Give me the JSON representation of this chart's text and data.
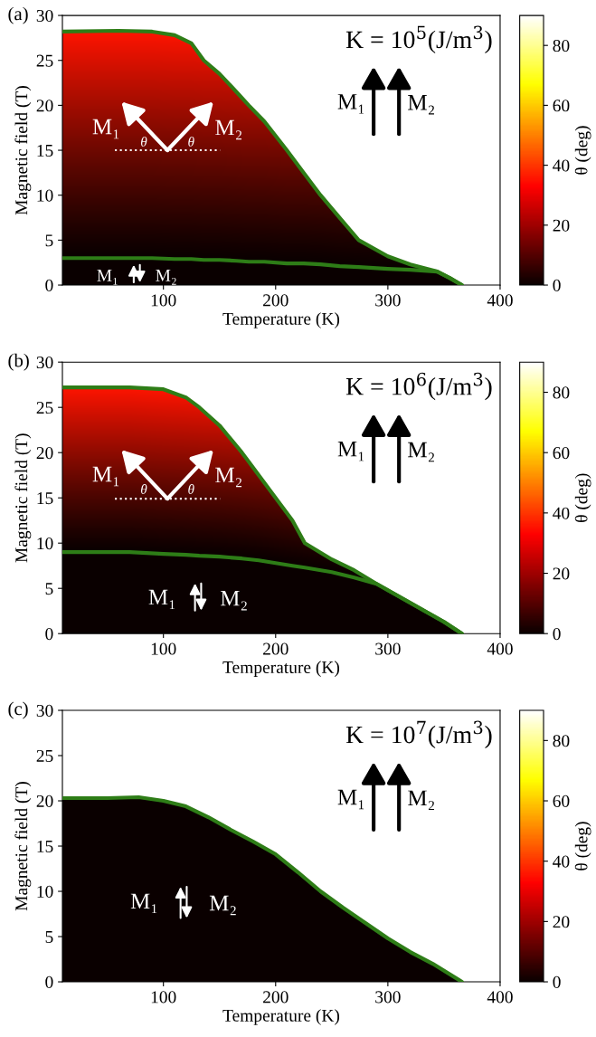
{
  "chart_data": [
    {
      "type": "line",
      "title": "(a)",
      "xlabel": "Temperature (K)",
      "ylabel": "Magnetic field (T)",
      "clabel": "θ (deg)",
      "xlim": [
        10,
        400
      ],
      "xticks": [
        100,
        200,
        300,
        400
      ],
      "ylim": [
        0,
        30
      ],
      "yticks": [
        0,
        5,
        10,
        15,
        20,
        25,
        30
      ],
      "clim": [
        0,
        90
      ],
      "cticks": [
        0,
        20,
        40,
        60,
        80
      ],
      "grid": false,
      "legend": false,
      "marker": "none",
      "line_style": "solid",
      "x": [
        10,
        60,
        90,
        110,
        125,
        136,
        150,
        165,
        176,
        190,
        210,
        225,
        240,
        257,
        274,
        300,
        320,
        344,
        355,
        366
      ],
      "series": [
        {
          "color": "#2e7d17",
          "values": [
            28.2,
            28.3,
            28.2,
            27.8,
            26.9,
            25,
            23.5,
            21.5,
            20,
            18.2,
            15,
            12.5,
            10,
            7.5,
            5,
            3.2,
            2.3,
            1.5,
            0.8,
            0
          ]
        },
        {
          "color": "#2e7d17",
          "values": [
            3.0,
            3.0,
            3.0,
            2.9,
            2.9,
            2.8,
            2.8,
            2.7,
            2.6,
            2.6,
            2.4,
            2.4,
            2.3,
            2.1,
            2.0,
            1.8,
            1.7,
            1.5,
            0.8,
            0
          ]
        }
      ],
      "annotations": [
        "K = 10$^{5}$(J/m$^{3}$)",
        "M₁",
        "M₂",
        "M₁",
        "M₂",
        "θ",
        "θ",
        "M₁",
        "M₂"
      ]
    },
    {
      "type": "line",
      "title": "(b)",
      "xlabel": "Temperature (K)",
      "ylabel": "Magnetic field (T)",
      "clabel": "θ (deg)",
      "xlim": [
        10,
        400
      ],
      "xticks": [
        100,
        200,
        300,
        400
      ],
      "ylim": [
        0,
        30
      ],
      "yticks": [
        0,
        5,
        10,
        15,
        20,
        25,
        30
      ],
      "clim": [
        0,
        90
      ],
      "cticks": [
        0,
        20,
        40,
        60,
        80
      ],
      "grid": false,
      "legend": false,
      "marker": "none",
      "line_style": "solid",
      "x": [
        10,
        70,
        100,
        120,
        132,
        150,
        170,
        185,
        200,
        215,
        226,
        250,
        270,
        290,
        310,
        330,
        350,
        366
      ],
      "series": [
        {
          "color": "#2e7d17",
          "values": [
            27.2,
            27.2,
            27.0,
            26.1,
            25,
            23,
            20,
            17.5,
            15,
            12.5,
            10,
            8.2,
            7,
            5.5,
            4.1,
            2.7,
            1.3,
            0
          ]
        },
        {
          "color": "#2e7d17",
          "values": [
            9.0,
            9.0,
            8.8,
            8.7,
            8.6,
            8.5,
            8.3,
            8.1,
            7.8,
            7.5,
            7.3,
            6.8,
            6.2,
            5.5,
            4.1,
            2.7,
            1.3,
            0
          ]
        }
      ],
      "annotations": [
        "K = 10$^{6}$(J/m$^{3}$)",
        "M₁",
        "M₂",
        "M₁",
        "M₂",
        "θ",
        "θ",
        "M₁",
        "M₂"
      ]
    },
    {
      "type": "line",
      "title": "(c)",
      "xlabel": "Temperature (K)",
      "ylabel": "Magnetic field (T)",
      "clabel": "θ (deg)",
      "xlim": [
        10,
        400
      ],
      "xticks": [
        100,
        200,
        300,
        400
      ],
      "ylim": [
        0,
        30
      ],
      "yticks": [
        0,
        5,
        10,
        15,
        20,
        25,
        30
      ],
      "clim": [
        0,
        90
      ],
      "cticks": [
        0,
        20,
        40,
        60,
        80
      ],
      "grid": false,
      "legend": false,
      "marker": "none",
      "line_style": "solid",
      "x": [
        10,
        50,
        78,
        100,
        120,
        140,
        160,
        180,
        200,
        220,
        240,
        260,
        280,
        300,
        320,
        340,
        366
      ],
      "series": [
        {
          "color": "#2e7d17",
          "values": [
            20.3,
            20.3,
            20.4,
            20.0,
            19.4,
            18.2,
            16.8,
            15.5,
            14.1,
            12.1,
            10,
            8.2,
            6.5,
            4.8,
            3.3,
            2.0,
            0
          ]
        }
      ],
      "annotations": [
        "K = 10$^{7}$(J/m$^{3}$)",
        "M₁",
        "M₂",
        "M₁",
        "M₂"
      ]
    }
  ]
}
